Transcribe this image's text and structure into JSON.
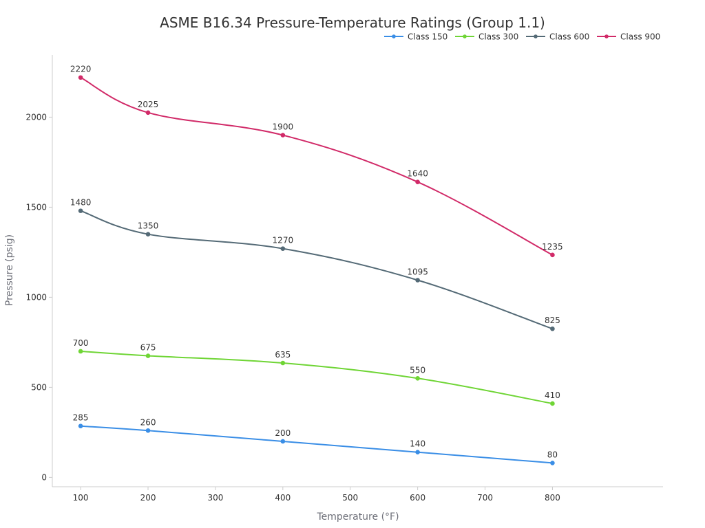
{
  "chart_data": {
    "type": "line",
    "title": "ASME B16.34 Pressure-Temperature Ratings (Group 1.1)",
    "xlabel": "Temperature (°F)",
    "ylabel": "Pressure (psig)",
    "x": [
      100,
      200,
      400,
      600,
      800
    ],
    "xlim": [
      58,
      964
    ],
    "ylim": [
      -52,
      2345
    ],
    "x_ticks": [
      "100",
      "200",
      "300",
      "400",
      "500",
      "600",
      "700",
      "800"
    ],
    "y_ticks": [
      "0",
      "500",
      "1000",
      "1500",
      "2000"
    ],
    "grid": false,
    "legend_position": "top-right",
    "series": [
      {
        "name": "Class 150",
        "color": "#3a8ee6",
        "values": [
          285,
          260,
          200,
          140,
          80
        ],
        "labels": [
          "285",
          "260",
          "200",
          "140",
          "80"
        ]
      },
      {
        "name": "Class 300",
        "color": "#6fd535",
        "values": [
          700,
          675,
          635,
          550,
          410
        ],
        "labels": [
          "700",
          "675",
          "635",
          "550",
          "410"
        ]
      },
      {
        "name": "Class 600",
        "color": "#546a76",
        "values": [
          1480,
          1350,
          1270,
          1095,
          825
        ],
        "labels": [
          "1480",
          "1350",
          "1270",
          "1095",
          "825"
        ]
      },
      {
        "name": "Class 900",
        "color": "#d12a68",
        "values": [
          2220,
          2025,
          1900,
          1640,
          1235
        ],
        "labels": [
          "2220",
          "2025",
          "1900",
          "1640",
          "1235"
        ]
      }
    ]
  }
}
